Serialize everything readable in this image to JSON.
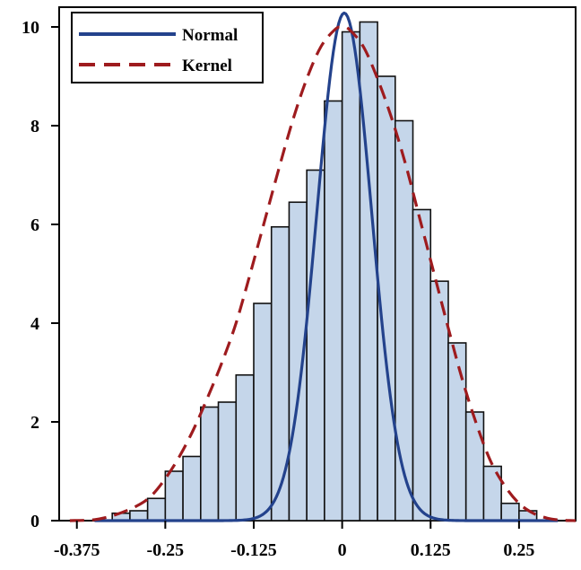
{
  "chart_data": {
    "type": "bar",
    "title": "",
    "xlabel": "",
    "ylabel": "",
    "xlim": [
      -0.4,
      0.33
    ],
    "ylim": [
      0,
      10.4
    ],
    "grid": false,
    "legend_position": "top-left",
    "x_ticks": [
      {
        "value": -0.375,
        "label": "-0.375"
      },
      {
        "value": -0.25,
        "label": "-0.25"
      },
      {
        "value": -0.125,
        "label": "-0.125"
      },
      {
        "value": 0,
        "label": "0"
      },
      {
        "value": 0.125,
        "label": "0.125"
      },
      {
        "value": 0.25,
        "label": "0.25"
      }
    ],
    "y_ticks": [
      {
        "value": 0,
        "label": "0"
      },
      {
        "value": 2,
        "label": "2"
      },
      {
        "value": 4,
        "label": "4"
      },
      {
        "value": 6,
        "label": "6"
      },
      {
        "value": 8,
        "label": "8"
      },
      {
        "value": 10,
        "label": "10"
      }
    ],
    "histogram": {
      "bin_width": 0.025,
      "bins": [
        {
          "start": -0.325,
          "value": 0.15
        },
        {
          "start": -0.3,
          "value": 0.2
        },
        {
          "start": -0.275,
          "value": 0.45
        },
        {
          "start": -0.25,
          "value": 1.0
        },
        {
          "start": -0.225,
          "value": 1.3
        },
        {
          "start": -0.2,
          "value": 2.3
        },
        {
          "start": -0.175,
          "value": 2.4
        },
        {
          "start": -0.15,
          "value": 2.95
        },
        {
          "start": -0.125,
          "value": 4.4
        },
        {
          "start": -0.1,
          "value": 5.95
        },
        {
          "start": -0.075,
          "value": 6.45
        },
        {
          "start": -0.05,
          "value": 7.1
        },
        {
          "start": -0.025,
          "value": 8.5
        },
        {
          "start": 0.0,
          "value": 9.9
        },
        {
          "start": 0.025,
          "value": 10.1
        },
        {
          "start": 0.05,
          "value": 9.0
        },
        {
          "start": 0.075,
          "value": 8.1
        },
        {
          "start": 0.1,
          "value": 6.3
        },
        {
          "start": 0.125,
          "value": 4.85
        },
        {
          "start": 0.15,
          "value": 3.6
        },
        {
          "start": 0.175,
          "value": 2.2
        },
        {
          "start": 0.2,
          "value": 1.1
        },
        {
          "start": 0.225,
          "value": 0.35
        },
        {
          "start": 0.25,
          "value": 0.2
        }
      ],
      "fill_color": "#c5d6ea",
      "edge_color": "#111111"
    },
    "series": [
      {
        "name": "Normal",
        "kind": "line",
        "style": "solid",
        "color": "#23428c",
        "mean": 0.003,
        "sd": 0.0388,
        "scale": 1.0,
        "x_range": [
          -0.35,
          0.305
        ]
      },
      {
        "name": "Kernel",
        "kind": "line",
        "style": "dashed",
        "color": "#9e1b1e",
        "x": [
          -0.385,
          -0.35,
          -0.32,
          -0.29,
          -0.27,
          -0.25,
          -0.23,
          -0.21,
          -0.19,
          -0.17,
          -0.15,
          -0.13,
          -0.11,
          -0.09,
          -0.07,
          -0.05,
          -0.03,
          -0.01,
          0.0,
          0.01,
          0.03,
          0.05,
          0.07,
          0.09,
          0.11,
          0.13,
          0.15,
          0.17,
          0.19,
          0.21,
          0.23,
          0.25,
          0.27,
          0.29,
          0.31,
          0.33
        ],
        "y": [
          0.0,
          0.02,
          0.12,
          0.3,
          0.5,
          0.85,
          1.3,
          1.85,
          2.5,
          3.2,
          4.0,
          5.0,
          6.05,
          7.1,
          8.1,
          8.95,
          9.6,
          9.95,
          10.0,
          9.95,
          9.6,
          8.95,
          8.15,
          7.2,
          6.1,
          5.0,
          3.9,
          2.85,
          1.95,
          1.2,
          0.7,
          0.35,
          0.15,
          0.05,
          0.01,
          0.0
        ]
      }
    ]
  }
}
